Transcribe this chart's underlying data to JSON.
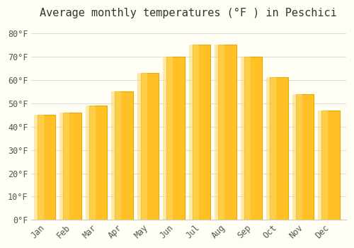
{
  "title": "Average monthly temperatures (°F ) in Peschici",
  "months": [
    "Jan",
    "Feb",
    "Mar",
    "Apr",
    "May",
    "Jun",
    "Jul",
    "Aug",
    "Sep",
    "Oct",
    "Nov",
    "Dec"
  ],
  "values": [
    45,
    46,
    49,
    55,
    63,
    70,
    75,
    75,
    70,
    61,
    54,
    47
  ],
  "bar_color_main": "#FFC125",
  "bar_color_edge": "#E8A800",
  "background_color": "#FFFEF5",
  "grid_color": "#DDDDDD",
  "yticks": [
    0,
    10,
    20,
    30,
    40,
    50,
    60,
    70,
    80
  ],
  "ylim": [
    0,
    83
  ],
  "title_fontsize": 11,
  "tick_fontsize": 8.5,
  "font_family": "monospace"
}
